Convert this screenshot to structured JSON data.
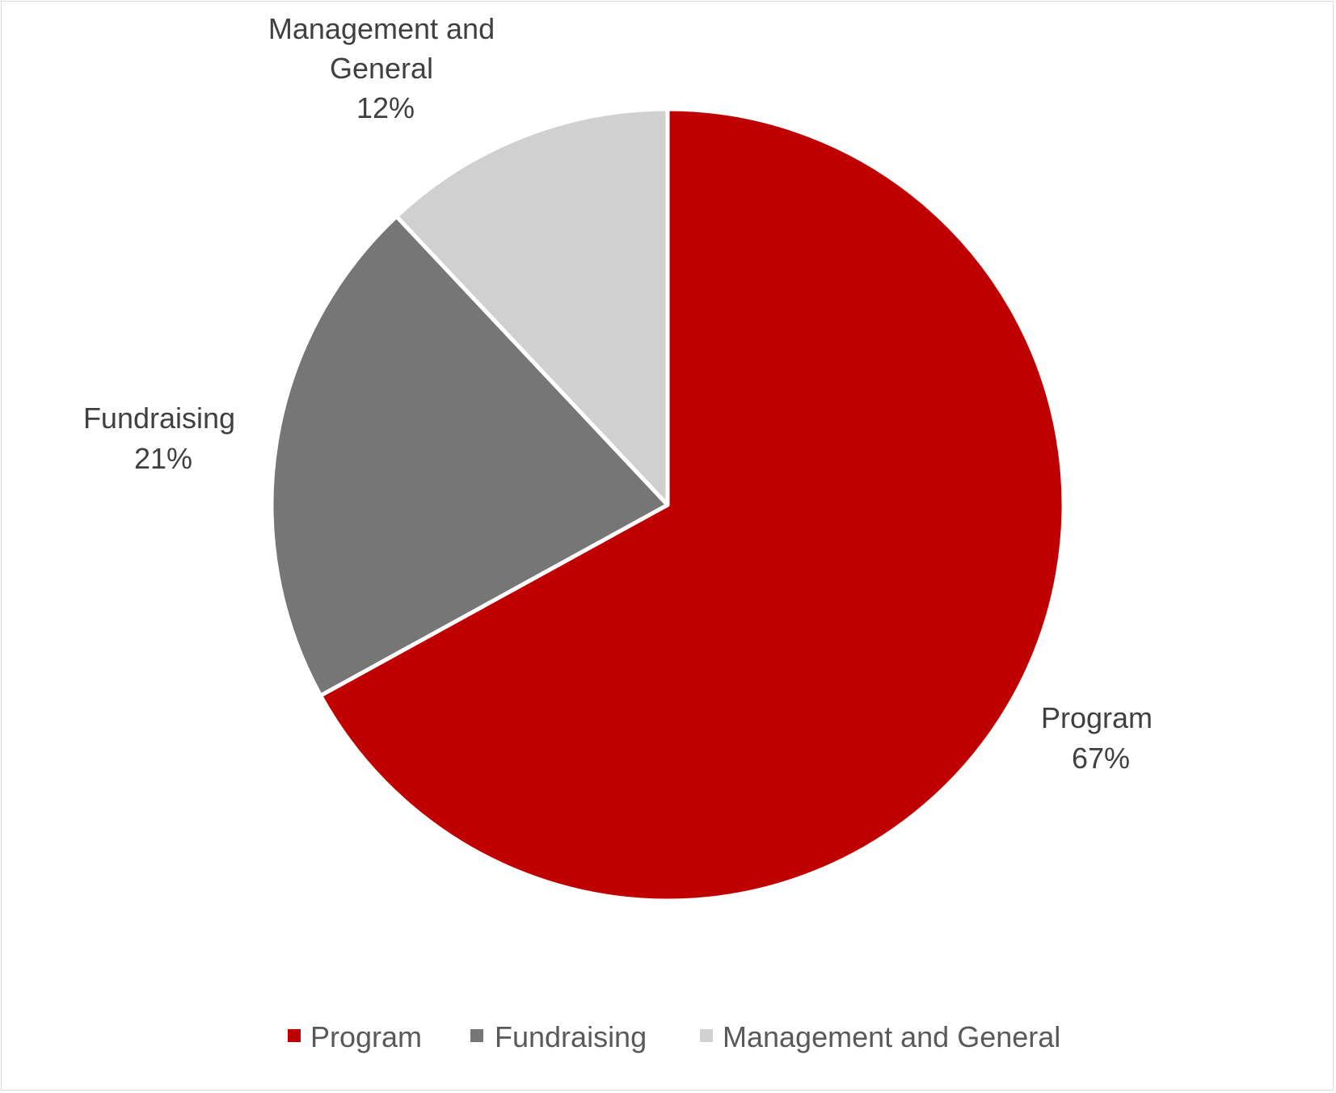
{
  "chart_data": {
    "type": "pie",
    "title": "",
    "categories": [
      "Program",
      "Fundraising",
      "Management and General"
    ],
    "values": [
      67,
      21,
      12
    ],
    "value_labels": [
      "67%",
      "21%",
      "12%"
    ],
    "colors": [
      "#c00000",
      "#767676",
      "#d0d0d0"
    ],
    "start_angle_deg": 0,
    "direction": "clockwise",
    "legend": {
      "position": "bottom",
      "items": [
        "Program",
        "Fundraising",
        "Management and General"
      ]
    },
    "data_labels": [
      {
        "lines": [
          "Program",
          "67%"
        ]
      },
      {
        "lines": [
          "Fundraising",
          "21%"
        ]
      },
      {
        "lines": [
          "Management and",
          "General",
          "12%"
        ]
      }
    ]
  }
}
